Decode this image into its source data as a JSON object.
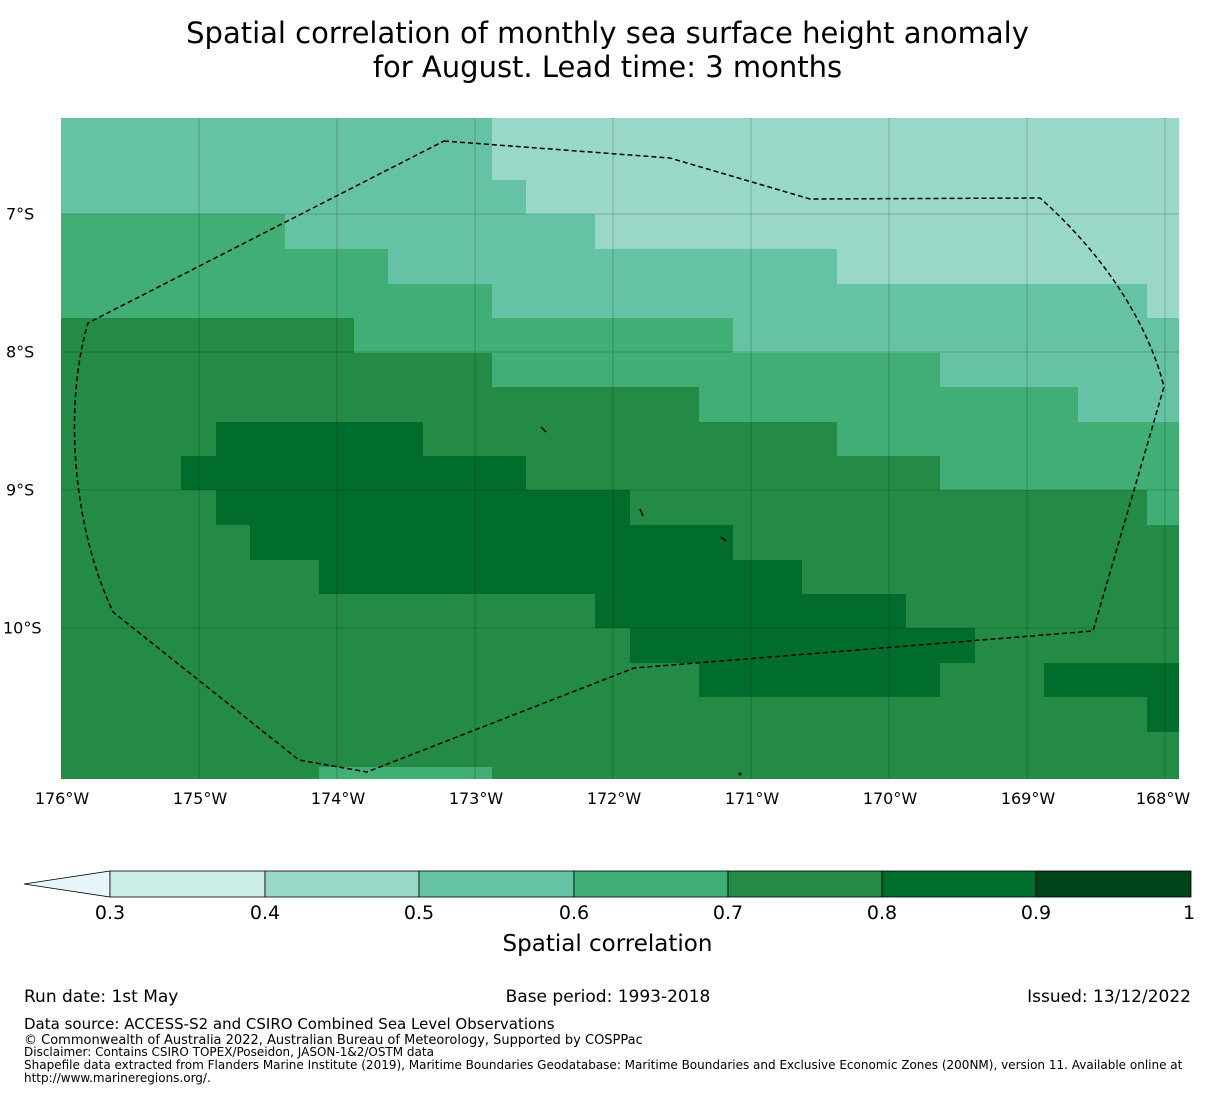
{
  "title": {
    "line1": "Spatial correlation of monthly sea surface height anomaly",
    "line2": "for August. Lead time: 3 months"
  },
  "map": {
    "lat_labels": [
      "7°S",
      "8°S",
      "9°S",
      "10°S"
    ],
    "lon_labels": [
      "176°W",
      "175°W",
      "174°W",
      "173°W",
      "172°W",
      "171°W",
      "170°W",
      "169°W",
      "168°W"
    ],
    "colors": {
      "c04": "#99d8c9",
      "c05": "#66c2a4",
      "c06": "#41ae76",
      "c07": "#238b45",
      "c08": "#006d2c",
      "c09": "#00441b"
    },
    "eez_boundary": "dashed black line (EEZ)"
  },
  "colorbar": {
    "ticks": [
      "0.3",
      "0.4",
      "0.5",
      "0.6",
      "0.7",
      "0.8",
      "0.9",
      "1"
    ],
    "colors": [
      "#e5f5f9",
      "#ccece6",
      "#99d8c9",
      "#66c2a4",
      "#41ae76",
      "#238b45",
      "#006d2c",
      "#00441b"
    ],
    "label": "Spatial correlation"
  },
  "footer": {
    "run_date": "Run date: 1st May",
    "base_period": "Base period: 1993-2018",
    "issued": "Issued: 13/12/2022",
    "data_source": "Data source: ACCESS-S2 and CSIRO Combined Sea Level Observations",
    "copyright": "© Commonwealth of Australia 2022, Australian Bureau of Meteorology, Supported by COSPPac",
    "disclaimer": "Disclaimer: Contains CSIRO TOPEX/Poseidon, JASON-1&2/OSTM data",
    "shapefile": "Shapefile data extracted from Flanders Marine Institute (2019), Maritime Boundaries Geodatabase: Maritime Boundaries and Exclusive Economic Zones (200NM), version 11. Available online at http://www.marineregions.org/."
  }
}
